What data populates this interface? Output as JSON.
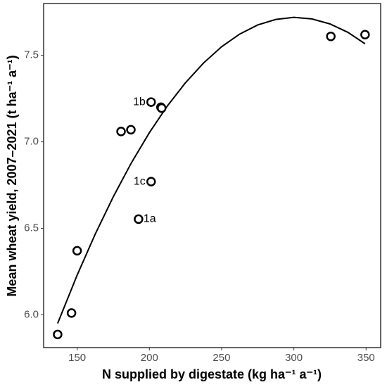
{
  "chart_data": {
    "type": "scatter",
    "x_label": "N supplied by digestate (kg ha⁻¹ a⁻¹)",
    "y_label": "Mean wheat yield, 2007–2021 (t ha⁻¹ a⁻¹)",
    "x": [
      136.5,
      146.1,
      150,
      180.4,
      187.2,
      192.5,
      201.2,
      201.2,
      208,
      208.5,
      325.6,
      349.3
    ],
    "values": [
      5.886,
      6.01,
      6.37,
      7.06,
      7.07,
      6.553,
      7.23,
      6.77,
      7.2,
      7.195,
      7.61,
      7.62
    ],
    "point_labels": [
      null,
      null,
      null,
      null,
      null,
      "1a",
      "1b",
      "1c",
      null,
      null,
      null,
      null
    ],
    "color": "#000000",
    "fit": {
      "x": [
        136.5,
        150,
        162.5,
        175,
        187.5,
        200,
        212.5,
        225,
        237.5,
        250,
        262.5,
        275,
        287.5,
        300,
        312.5,
        325,
        337.5,
        349.3
      ],
      "values": [
        5.95,
        6.229,
        6.466,
        6.682,
        6.878,
        7.053,
        7.208,
        7.342,
        7.456,
        7.55,
        7.623,
        7.676,
        7.708,
        7.72,
        7.711,
        7.682,
        7.633,
        7.567
      ]
    },
    "xlim": [
      126.8,
      360.1
    ],
    "ylim": [
      5.81,
      7.8
    ],
    "xticks": [
      150,
      200,
      250,
      300,
      350
    ],
    "yticks": [
      {
        "value": 6,
        "label": "6.0"
      },
      6.5,
      {
        "value": 7,
        "label": "7.0"
      },
      7.5
    ],
    "grid": false
  }
}
